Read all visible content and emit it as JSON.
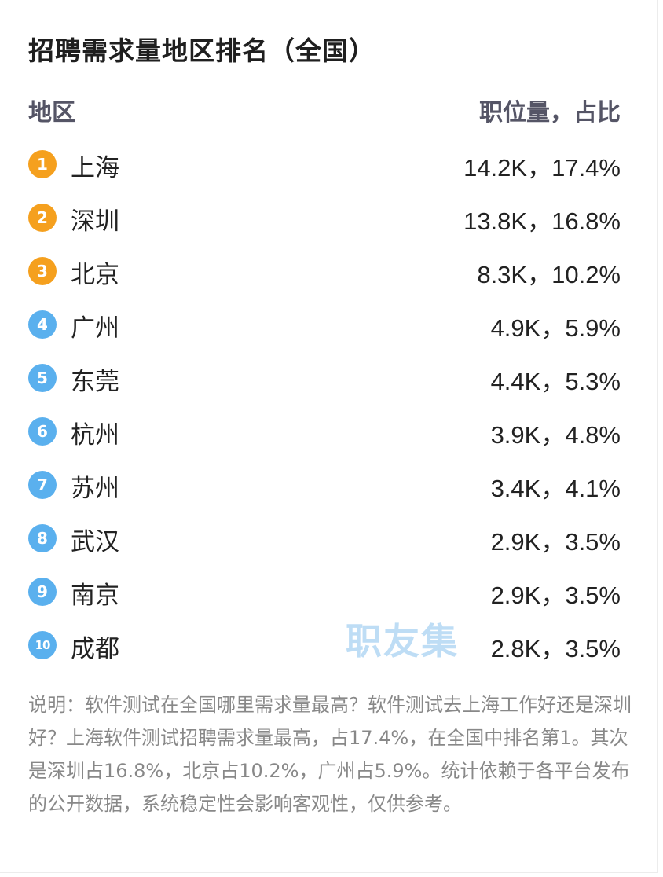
{
  "title": "招聘需求量地区排名（全国）",
  "header": {
    "region_label": "地区",
    "value_label": "职位量，占比"
  },
  "colors": {
    "top_rank": "#f5a01e",
    "other_rank": "#5ab0ee"
  },
  "ranking": [
    {
      "rank": "1",
      "region": "上海",
      "value": "14.2K，17.4%",
      "tier": "top"
    },
    {
      "rank": "2",
      "region": "深圳",
      "value": "13.8K，16.8%",
      "tier": "top"
    },
    {
      "rank": "3",
      "region": "北京",
      "value": "8.3K，10.2%",
      "tier": "top"
    },
    {
      "rank": "4",
      "region": "广州",
      "value": "4.9K，5.9%",
      "tier": "other"
    },
    {
      "rank": "5",
      "region": "东莞",
      "value": "4.4K，5.3%",
      "tier": "other"
    },
    {
      "rank": "6",
      "region": "杭州",
      "value": "3.9K，4.8%",
      "tier": "other"
    },
    {
      "rank": "7",
      "region": "苏州",
      "value": "3.4K，4.1%",
      "tier": "other"
    },
    {
      "rank": "8",
      "region": "武汉",
      "value": "2.9K，3.5%",
      "tier": "other"
    },
    {
      "rank": "9",
      "region": "南京",
      "value": "2.9K，3.5%",
      "tier": "other"
    },
    {
      "rank": "10",
      "region": "成都",
      "value": "2.8K，3.5%",
      "tier": "other"
    }
  ],
  "watermark": "职友集",
  "note": "说明：软件测试在全国哪里需求量最高？软件测试去上海工作好还是深圳好？上海软件测试招聘需求量最高，占17.4%，在全国中排名第1。其次是深圳占16.8%，北京占10.2%，广州占5.9%。统计依赖于各平台发布的公开数据，系统稳定性会影响客观性，仅供参考。"
}
